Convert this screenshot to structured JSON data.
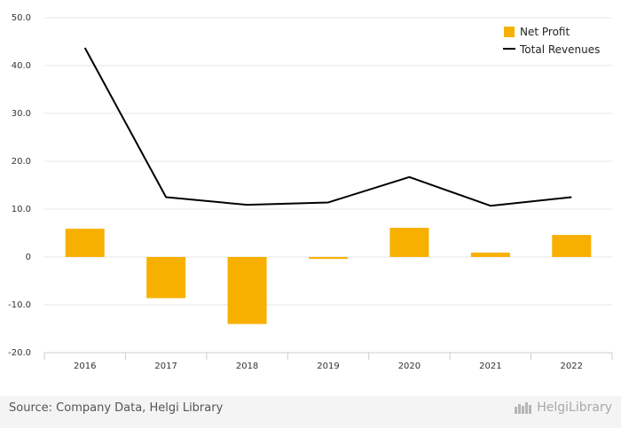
{
  "chart_data": {
    "type": "bar",
    "categories": [
      "2016",
      "2017",
      "2018",
      "2019",
      "2020",
      "2021",
      "2022"
    ],
    "series": [
      {
        "name": "Net Profit",
        "type": "bar",
        "values": [
          5.9,
          -8.6,
          -14.0,
          -0.4,
          6.1,
          0.9,
          4.6
        ]
      },
      {
        "name": "Total Revenues",
        "type": "line",
        "values": [
          43.7,
          12.5,
          10.9,
          11.4,
          16.7,
          10.7,
          12.5
        ]
      }
    ],
    "ylim": [
      -20,
      50
    ],
    "yticks": [
      "50.0",
      "40.0",
      "30.0",
      "20.0",
      "10.0",
      "0",
      "-10.0",
      "-20.0"
    ],
    "ytick_values": [
      50,
      40,
      30,
      20,
      10,
      0,
      -10,
      -20
    ],
    "grid": true,
    "legend_position": "top-right",
    "colors": {
      "Net Profit": "#f8b000",
      "Total Revenues": "#000000"
    }
  },
  "footer": {
    "source": "Source: Company Data, Helgi Library",
    "brand": "HelgiLibrary"
  }
}
